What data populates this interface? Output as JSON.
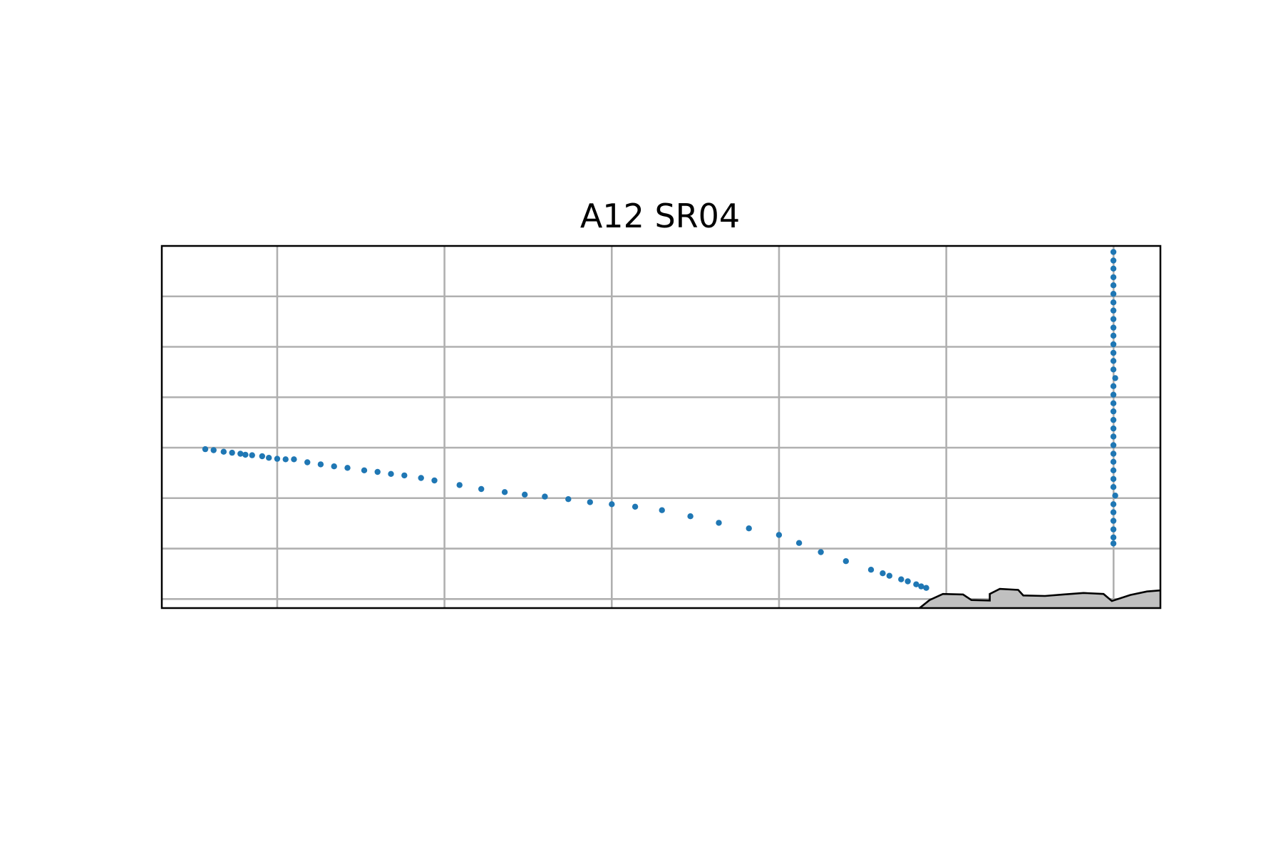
{
  "chart_data": {
    "type": "scatter",
    "title": "A12 SR04",
    "xlabel": "",
    "ylabel": "",
    "x_ticks": [
      -30,
      -20,
      -10,
      0,
      10,
      20,
      30
    ],
    "y_ticks": [
      0,
      1000,
      2000,
      3000,
      4000,
      5000,
      6000,
      7000
    ],
    "xlim": [
      -36.9,
      22.8
    ],
    "ylim": [
      7180,
      0
    ],
    "y_inverted": true,
    "grid": true,
    "tick_labels_visible": false,
    "point_color": "#1f77b4",
    "bathymetry_fill_color": "#c0c0c0",
    "bathymetry_line_color": "#000000",
    "series": [
      {
        "values": [
          {
            "x": -34.3,
            "y": 4030
          },
          {
            "x": -33.8,
            "y": 4050
          },
          {
            "x": -33.2,
            "y": 4080
          },
          {
            "x": -32.7,
            "y": 4100
          },
          {
            "x": -32.2,
            "y": 4120
          },
          {
            "x": -31.9,
            "y": 4140
          },
          {
            "x": -31.5,
            "y": 4150
          },
          {
            "x": -30.9,
            "y": 4170
          },
          {
            "x": -30.5,
            "y": 4200
          },
          {
            "x": -30.0,
            "y": 4220
          },
          {
            "x": -29.5,
            "y": 4230
          },
          {
            "x": -29.0,
            "y": 4230
          },
          {
            "x": -28.2,
            "y": 4290
          },
          {
            "x": -27.4,
            "y": 4330
          },
          {
            "x": -26.6,
            "y": 4370
          },
          {
            "x": -25.8,
            "y": 4400
          },
          {
            "x": -24.8,
            "y": 4450
          },
          {
            "x": -24.0,
            "y": 4480
          },
          {
            "x": -23.2,
            "y": 4520
          },
          {
            "x": -22.4,
            "y": 4550
          },
          {
            "x": -21.4,
            "y": 4600
          },
          {
            "x": -20.6,
            "y": 4650
          },
          {
            "x": -19.1,
            "y": 4740
          },
          {
            "x": -17.8,
            "y": 4820
          },
          {
            "x": -16.4,
            "y": 4880
          },
          {
            "x": -15.2,
            "y": 4930
          },
          {
            "x": -14.0,
            "y": 4970
          },
          {
            "x": -12.6,
            "y": 5020
          },
          {
            "x": -11.3,
            "y": 5080
          },
          {
            "x": -10.0,
            "y": 5120
          },
          {
            "x": -8.6,
            "y": 5170
          },
          {
            "x": -7.0,
            "y": 5240
          },
          {
            "x": -5.3,
            "y": 5360
          },
          {
            "x": -3.6,
            "y": 5490
          },
          {
            "x": -1.8,
            "y": 5600
          },
          {
            "x": 0.0,
            "y": 5730
          },
          {
            "x": 1.2,
            "y": 5890
          },
          {
            "x": 2.5,
            "y": 6070
          },
          {
            "x": 4.0,
            "y": 6250
          },
          {
            "x": 5.5,
            "y": 6420
          },
          {
            "x": 6.2,
            "y": 6490
          },
          {
            "x": 6.6,
            "y": 6540
          },
          {
            "x": 7.3,
            "y": 6610
          },
          {
            "x": 7.7,
            "y": 6650
          },
          {
            "x": 8.2,
            "y": 6710
          },
          {
            "x": 8.5,
            "y": 6750
          },
          {
            "x": 8.8,
            "y": 6780
          },
          {
            "x": 19.99,
            "y": 120
          },
          {
            "x": 19.99,
            "y": 290
          },
          {
            "x": 19.99,
            "y": 450
          },
          {
            "x": 19.99,
            "y": 620
          },
          {
            "x": 19.99,
            "y": 780
          },
          {
            "x": 19.99,
            "y": 950
          },
          {
            "x": 19.99,
            "y": 1120
          },
          {
            "x": 19.99,
            "y": 1280
          },
          {
            "x": 19.99,
            "y": 1450
          },
          {
            "x": 19.99,
            "y": 1620
          },
          {
            "x": 19.99,
            "y": 1780
          },
          {
            "x": 19.99,
            "y": 1950
          },
          {
            "x": 19.99,
            "y": 2120
          },
          {
            "x": 19.99,
            "y": 2280
          },
          {
            "x": 19.99,
            "y": 2450
          },
          {
            "x": 20.1,
            "y": 2620
          },
          {
            "x": 19.99,
            "y": 2780
          },
          {
            "x": 19.99,
            "y": 2950
          },
          {
            "x": 19.99,
            "y": 3120
          },
          {
            "x": 19.99,
            "y": 3280
          },
          {
            "x": 19.99,
            "y": 3450
          },
          {
            "x": 19.99,
            "y": 3620
          },
          {
            "x": 19.99,
            "y": 3780
          },
          {
            "x": 19.99,
            "y": 3950
          },
          {
            "x": 19.99,
            "y": 4120
          },
          {
            "x": 19.99,
            "y": 4280
          },
          {
            "x": 19.99,
            "y": 4450
          },
          {
            "x": 19.99,
            "y": 4620
          },
          {
            "x": 19.99,
            "y": 4780
          },
          {
            "x": 20.1,
            "y": 4950
          },
          {
            "x": 19.99,
            "y": 5120
          },
          {
            "x": 19.99,
            "y": 5280
          },
          {
            "x": 19.99,
            "y": 5450
          },
          {
            "x": 19.99,
            "y": 5620
          },
          {
            "x": 19.99,
            "y": 5780
          },
          {
            "x": 19.99,
            "y": 5900
          }
        ]
      }
    ],
    "bathymetry": [
      [
        8.4,
        7180
      ],
      [
        9.0,
        7020
      ],
      [
        9.8,
        6900
      ],
      [
        11.0,
        6910
      ],
      [
        11.5,
        7020
      ],
      [
        12.6,
        7030
      ],
      [
        12.6,
        6900
      ],
      [
        13.2,
        6800
      ],
      [
        14.3,
        6820
      ],
      [
        14.6,
        6930
      ],
      [
        15.9,
        6940
      ],
      [
        17.0,
        6910
      ],
      [
        18.2,
        6880
      ],
      [
        19.4,
        6900
      ],
      [
        19.9,
        7040
      ],
      [
        21.0,
        6920
      ],
      [
        22.0,
        6850
      ],
      [
        22.8,
        6830
      ]
    ]
  }
}
